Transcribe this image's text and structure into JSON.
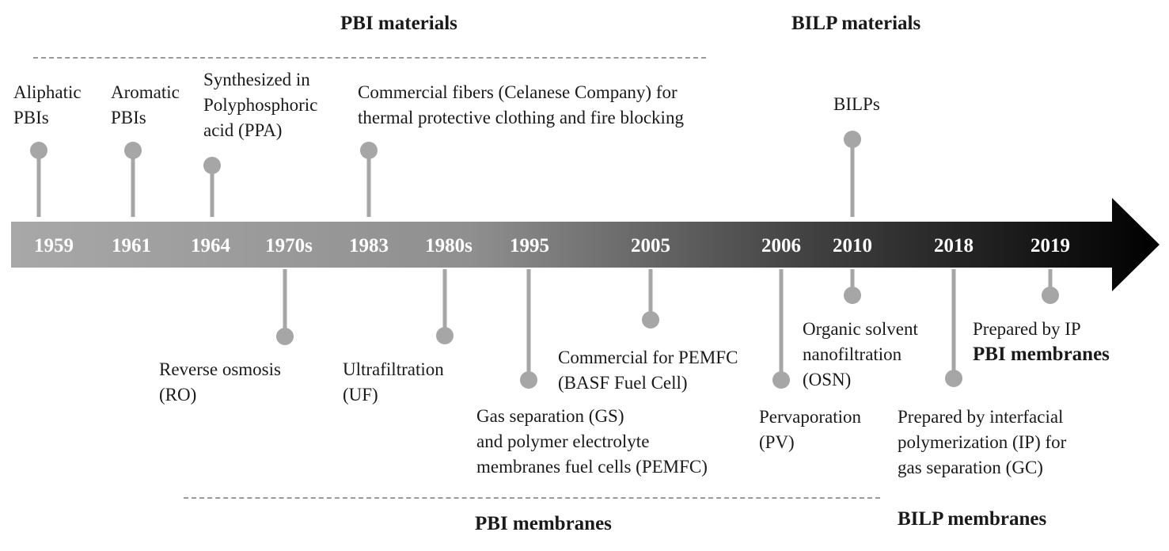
{
  "headers": {
    "pbi_materials": "PBI materials",
    "bilp_materials": "BILP materials",
    "pbi_membranes": "PBI membranes",
    "bilp_membranes": "BILP membranes"
  },
  "colors": {
    "arrow_start": "#a8a8a8",
    "arrow_end": "#000000",
    "stem": "#a6a6a6",
    "dashed": "#9a9a9a"
  },
  "years": [
    "1959",
    "1961",
    "1964",
    "1970s",
    "1983",
    "1980s",
    "1995",
    "2005",
    "2006",
    "2010",
    "2018",
    "2019"
  ],
  "events": {
    "e1959": [
      "Aliphatic",
      "PBIs"
    ],
    "e1961": [
      "Aromatic",
      "PBIs"
    ],
    "e1964": [
      "Synthesized in",
      "Polyphosphoric",
      "acid (PPA)"
    ],
    "e1983": [
      "Commercial fibers (Celanese Company) for",
      "thermal protective clothing and fire blocking"
    ],
    "e2010_top": [
      "BILPs"
    ],
    "e1970s": [
      "Reverse osmosis",
      "(RO)"
    ],
    "e1980s": [
      "Ultrafiltration",
      "(UF)"
    ],
    "e1995": [
      "Gas separation (GS)",
      "and polymer electrolyte",
      "membranes fuel cells (PEMFC)"
    ],
    "e2005": [
      "Commercial for PEMFC",
      "(BASF Fuel Cell)"
    ],
    "e2006": [
      "Pervaporation",
      "(PV)"
    ],
    "e2010_bottom": [
      "Organic solvent",
      "nanofiltration",
      "(OSN)"
    ],
    "e2018": [
      "Prepared by interfacial",
      "polymerization (IP) for",
      "gas separation (GC)"
    ],
    "e2019": [
      "Prepared by IP",
      "PBI membranes"
    ]
  }
}
